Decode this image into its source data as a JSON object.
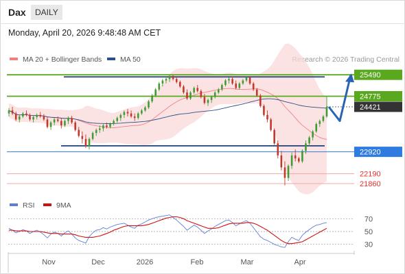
{
  "header": {
    "symbol": "Dax",
    "period": "DAILY"
  },
  "datetime": "Monday, April 20, 2026 9:48:48 AM CET",
  "legend": {
    "bb_label": "MA 20 + Bollinger Bands",
    "ma50_label": "MA 50",
    "bb_color": "#f08080",
    "ma50_color": "#2a4f8a",
    "credit": "Research © 2026 Trading Central"
  },
  "rsi_legend": {
    "rsi_label": "RSI",
    "ma_label": "9MA",
    "rsi_color": "#5b7fd6",
    "ma_color": "#d01010"
  },
  "chart_data": [
    {
      "type": "candlestick",
      "x_ticks": [
        "Nov",
        "Dec",
        "2026",
        "Feb",
        "Mar",
        "Apr"
      ],
      "ylim": [
        21700,
        25700
      ],
      "levels": [
        {
          "label": "25490",
          "value": 25490,
          "kind": "resistance",
          "color": "#5aa81e"
        },
        {
          "label": "24775",
          "value": 24775,
          "kind": "resistance",
          "color": "#5aa81e"
        },
        {
          "label": "24421",
          "value": 24421,
          "kind": "last",
          "color": "#333333"
        },
        {
          "label": "22920",
          "value": 22920,
          "kind": "support",
          "color": "#2f7be0"
        },
        {
          "label": "22190",
          "value": 22190,
          "kind": "support",
          "color": "#e63030"
        },
        {
          "label": "21860",
          "value": 21860,
          "kind": "support",
          "color": "#e63030"
        }
      ],
      "channel": {
        "top": 25420,
        "bottom": 23120,
        "color": "#1f3f7a"
      },
      "up_color": "#3f9c35",
      "down_color": "#c0392b",
      "forecast": [
        24421,
        23950,
        25490
      ],
      "candles": [
        [
          24200,
          24380,
          24100,
          24300
        ],
        [
          24300,
          24420,
          24150,
          24200
        ],
        [
          24200,
          24260,
          23950,
          24000
        ],
        [
          24000,
          24150,
          23900,
          24100
        ],
        [
          24100,
          24250,
          24050,
          24200
        ],
        [
          24200,
          24300,
          24100,
          24150
        ],
        [
          24150,
          24200,
          23950,
          24000
        ],
        [
          24000,
          24120,
          23900,
          24080
        ],
        [
          24080,
          24200,
          24000,
          24150
        ],
        [
          24150,
          24250,
          24050,
          24100
        ],
        [
          24100,
          24180,
          23950,
          24000
        ],
        [
          24000,
          24080,
          23700,
          23750
        ],
        [
          23750,
          23950,
          23650,
          23900
        ],
        [
          23900,
          24050,
          23800,
          24000
        ],
        [
          24000,
          24100,
          23900,
          23950
        ],
        [
          23950,
          24050,
          23700,
          23800
        ],
        [
          23800,
          24000,
          23750,
          23950
        ],
        [
          23950,
          24100,
          23850,
          24050
        ],
        [
          24050,
          24120,
          23850,
          23900
        ],
        [
          23900,
          23950,
          23600,
          23650
        ],
        [
          23650,
          23750,
          23400,
          23450
        ],
        [
          23450,
          23600,
          23200,
          23350
        ],
        [
          23350,
          23500,
          23050,
          23100
        ],
        [
          23100,
          23400,
          23000,
          23350
        ],
        [
          23350,
          23600,
          23300,
          23550
        ],
        [
          23550,
          23700,
          23450,
          23650
        ],
        [
          23650,
          23800,
          23550,
          23700
        ],
        [
          23700,
          23850,
          23600,
          23800
        ],
        [
          23800,
          23900,
          23700,
          23750
        ],
        [
          23750,
          23900,
          23700,
          23850
        ],
        [
          23850,
          24000,
          23800,
          23950
        ],
        [
          23950,
          24100,
          23900,
          24050
        ],
        [
          24050,
          24200,
          23950,
          24150
        ],
        [
          24150,
          24300,
          24050,
          24250
        ],
        [
          24250,
          24350,
          24100,
          24200
        ],
        [
          24200,
          24300,
          24050,
          24100
        ],
        [
          24100,
          24200,
          23950,
          24050
        ],
        [
          24050,
          24250,
          24000,
          24200
        ],
        [
          24200,
          24350,
          24150,
          24300
        ],
        [
          24300,
          24450,
          24250,
          24400
        ],
        [
          24400,
          24650,
          24350,
          24600
        ],
        [
          24600,
          24850,
          24550,
          24800
        ],
        [
          24800,
          25050,
          24750,
          25000
        ],
        [
          25000,
          25250,
          24950,
          25200
        ],
        [
          25200,
          25350,
          25100,
          25300
        ],
        [
          25300,
          25450,
          25200,
          25350
        ],
        [
          25350,
          25500,
          25250,
          25450
        ],
        [
          25450,
          25480,
          25300,
          25350
        ],
        [
          25350,
          25400,
          25200,
          25250
        ],
        [
          25250,
          25300,
          25050,
          25100
        ],
        [
          25100,
          25150,
          24850,
          24900
        ],
        [
          24900,
          25000,
          24650,
          24700
        ],
        [
          24700,
          24950,
          24650,
          24900
        ],
        [
          24900,
          25100,
          24850,
          25050
        ],
        [
          25050,
          25150,
          24900,
          24950
        ],
        [
          24950,
          25000,
          24700,
          24750
        ],
        [
          24750,
          24850,
          24500,
          24550
        ],
        [
          24550,
          24700,
          24450,
          24650
        ],
        [
          24650,
          24800,
          24550,
          24750
        ],
        [
          24750,
          24950,
          24700,
          24900
        ],
        [
          24900,
          25050,
          24850,
          25000
        ],
        [
          25000,
          25200,
          24950,
          25150
        ],
        [
          25150,
          25350,
          25100,
          25300
        ],
        [
          25300,
          25400,
          25200,
          25350
        ],
        [
          25350,
          25420,
          25150,
          25200
        ],
        [
          25200,
          25300,
          25000,
          25050
        ],
        [
          25050,
          25250,
          25000,
          25200
        ],
        [
          25200,
          25350,
          25150,
          25300
        ],
        [
          25300,
          25420,
          25250,
          25400
        ],
        [
          25400,
          25450,
          25150,
          25200
        ],
        [
          25200,
          25250,
          24950,
          25000
        ],
        [
          25000,
          25050,
          24750,
          24800
        ],
        [
          24800,
          24850,
          24400,
          24450
        ],
        [
          24450,
          24500,
          24100,
          24150
        ],
        [
          24150,
          24300,
          23900,
          24000
        ],
        [
          24000,
          24050,
          23600,
          23650
        ],
        [
          23650,
          23700,
          23150,
          23200
        ],
        [
          23200,
          23300,
          22700,
          22800
        ],
        [
          22800,
          22950,
          22300,
          22400
        ],
        [
          22400,
          22600,
          21800,
          22050
        ],
        [
          22050,
          22500,
          21950,
          22450
        ],
        [
          22450,
          22900,
          22350,
          22800
        ],
        [
          22800,
          23000,
          22600,
          22700
        ],
        [
          22700,
          22750,
          22550,
          22600
        ],
        [
          22600,
          23000,
          22550,
          22950
        ],
        [
          22950,
          23300,
          22850,
          23200
        ],
        [
          23200,
          23450,
          23100,
          23400
        ],
        [
          23400,
          23650,
          23300,
          23600
        ],
        [
          23600,
          23900,
          23550,
          23850
        ],
        [
          23850,
          24000,
          23750,
          23950
        ],
        [
          23950,
          24150,
          23900,
          24100
        ],
        [
          24100,
          24780,
          24050,
          24421
        ]
      ]
    },
    {
      "type": "line",
      "name": "RSI",
      "ylim": [
        20,
        80
      ],
      "y_ticks": [
        "70",
        "50",
        "30"
      ],
      "series": [
        {
          "name": "RSI",
          "values": [
            55,
            52,
            48,
            50,
            53,
            51,
            47,
            50,
            52,
            49,
            45,
            40,
            46,
            49,
            47,
            43,
            48,
            51,
            46,
            40,
            36,
            34,
            32,
            42,
            48,
            52,
            53,
            56,
            54,
            57,
            59,
            61,
            62,
            63,
            60,
            57,
            55,
            60,
            62,
            65,
            68,
            70,
            72,
            73,
            74,
            75,
            76,
            72,
            68,
            63,
            58,
            52,
            56,
            60,
            57,
            52,
            47,
            51,
            54,
            58,
            61,
            64,
            67,
            68,
            64,
            59,
            62,
            65,
            67,
            63,
            56,
            49,
            42,
            38,
            36,
            33,
            30,
            28,
            26,
            25,
            34,
            41,
            38,
            36,
            44,
            49,
            53,
            57,
            60,
            61,
            63,
            64
          ]
        },
        {
          "name": "9MA",
          "values": [
            52,
            52,
            51,
            51,
            51,
            51,
            50,
            50,
            50,
            50,
            49,
            48,
            47,
            47,
            47,
            46,
            46,
            46,
            46,
            45,
            43,
            42,
            41,
            41,
            41,
            42,
            43,
            45,
            47,
            49,
            52,
            54,
            56,
            58,
            59,
            59,
            59,
            59,
            59,
            60,
            61,
            63,
            65,
            67,
            69,
            71,
            72,
            73,
            73,
            72,
            70,
            67,
            65,
            63,
            61,
            59,
            57,
            55,
            55,
            55,
            56,
            58,
            60,
            62,
            63,
            63,
            63,
            63,
            64,
            64,
            63,
            61,
            58,
            55,
            52,
            48,
            44,
            40,
            36,
            33,
            31,
            31,
            32,
            33,
            34,
            37,
            40,
            43,
            46,
            49,
            52,
            55
          ]
        }
      ]
    }
  ]
}
